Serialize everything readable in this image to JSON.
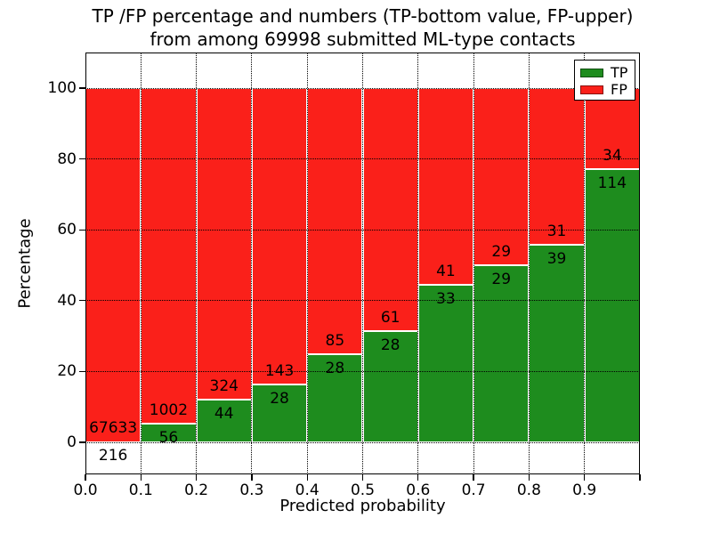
{
  "chart_data": {
    "type": "bar",
    "stacked": true,
    "normalized": "percent-of-bin",
    "title_line1": "TP /FP percentage and numbers (TP-bottom value, FP-upper)",
    "title_line2": "from among 69998 submitted ML-type contacts",
    "xlabel": "Predicted probability",
    "ylabel": "Percentage",
    "total_contacts": 69998,
    "bin_width": 0.1,
    "bin_starts": [
      0.0,
      0.1,
      0.2,
      0.3,
      0.4,
      0.5,
      0.6,
      0.7,
      0.8,
      0.9
    ],
    "x_tick_labels": [
      "0.0",
      "0.1",
      "0.2",
      "0.3",
      "0.4",
      "0.5",
      "0.6",
      "0.7",
      "0.8",
      "0.9"
    ],
    "y_tick_values": [
      0,
      20,
      40,
      60,
      80,
      100
    ],
    "xlim": [
      0.0,
      1.0
    ],
    "ylim_display": [
      -9,
      110
    ],
    "series": [
      {
        "name": "TP",
        "color": "#1e8c1e",
        "values": [
          216,
          56,
          44,
          28,
          28,
          28,
          33,
          29,
          39,
          114
        ]
      },
      {
        "name": "FP",
        "color": "#fa201a",
        "values": [
          67633,
          1002,
          324,
          143,
          85,
          61,
          41,
          29,
          31,
          34
        ]
      }
    ],
    "tp_percent_of_bin": [
      0.3,
      5.3,
      12.0,
      16.4,
      24.8,
      31.5,
      44.6,
      50.0,
      55.7,
      77.0
    ],
    "legend": {
      "position": "upper right",
      "entries": [
        "TP",
        "FP"
      ]
    },
    "grid": {
      "style": "dotted",
      "color": "#000000"
    },
    "bar_edge_color": "#ffffff",
    "text_color": "#000000"
  }
}
